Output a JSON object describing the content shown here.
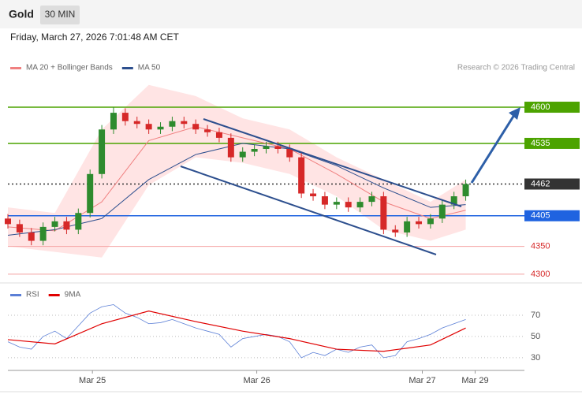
{
  "header": {
    "title": "Gold",
    "interval": "30 MIN",
    "timestamp": "Friday, March 27, 2026 7:01:48 AM CET",
    "credit": "Research © 2026 Trading Central"
  },
  "chart_data": [
    {
      "type": "candlestick",
      "legend": [
        {
          "name": "MA 20 + Bollinger Bands",
          "color": "#f08080"
        },
        {
          "name": "MA 50",
          "color": "#2d4f8e"
        }
      ],
      "x": [
        0,
        1,
        2,
        3,
        4,
        5,
        6,
        7,
        8,
        9,
        10,
        11,
        12,
        13,
        14,
        15,
        16,
        17,
        18,
        19,
        20,
        21,
        22,
        23,
        24,
        25,
        26,
        27,
        28,
        29,
        30,
        31,
        32,
        33,
        34,
        35,
        36,
        37,
        38,
        39
      ],
      "open": [
        4400,
        4390,
        4375,
        4360,
        4385,
        4395,
        4380,
        4410,
        4480,
        4560,
        4590,
        4575,
        4570,
        4560,
        4565,
        4575,
        4570,
        4560,
        4555,
        4545,
        4510,
        4520,
        4525,
        4530,
        4525,
        4510,
        4445,
        4440,
        4425,
        4430,
        4420,
        4430,
        4440,
        4380,
        4375,
        4395,
        4390,
        4400,
        4425,
        4440
      ],
      "high": [
        4408,
        4398,
        4383,
        4393,
        4403,
        4403,
        4418,
        4488,
        4568,
        4600,
        4598,
        4583,
        4578,
        4573,
        4583,
        4583,
        4578,
        4568,
        4563,
        4553,
        4528,
        4533,
        4538,
        4538,
        4533,
        4518,
        4453,
        4448,
        4438,
        4438,
        4438,
        4448,
        4448,
        4388,
        4403,
        4403,
        4408,
        4433,
        4448,
        4470
      ],
      "low": [
        4382,
        4367,
        4352,
        4352,
        4377,
        4372,
        4372,
        4402,
        4472,
        4552,
        4567,
        4562,
        4552,
        4552,
        4557,
        4562,
        4552,
        4547,
        4537,
        4502,
        4502,
        4512,
        4517,
        4517,
        4502,
        4437,
        4432,
        4417,
        4417,
        4412,
        4412,
        4422,
        4372,
        4367,
        4367,
        4382,
        4382,
        4392,
        4417,
        4432
      ],
      "close": [
        4390,
        4375,
        4360,
        4385,
        4395,
        4380,
        4410,
        4480,
        4560,
        4590,
        4575,
        4570,
        4560,
        4565,
        4575,
        4570,
        4560,
        4555,
        4545,
        4510,
        4520,
        4525,
        4530,
        4525,
        4510,
        4445,
        4440,
        4425,
        4430,
        4420,
        4430,
        4440,
        4380,
        4375,
        4395,
        4390,
        4400,
        4425,
        4440,
        4462
      ],
      "up_color": "#2e8b2e",
      "down_color": "#d62828",
      "ma_x": [
        0,
        4,
        8,
        12,
        16,
        20,
        24,
        28,
        32,
        36,
        39
      ],
      "ma20": [
        4385,
        4378,
        4430,
        4540,
        4565,
        4545,
        4525,
        4480,
        4430,
        4400,
        4415
      ],
      "ma50": [
        4370,
        4380,
        4400,
        4470,
        4515,
        4535,
        4525,
        4495,
        4455,
        4420,
        4425
      ],
      "bb_upper": [
        4420,
        4410,
        4560,
        4640,
        4620,
        4580,
        4560,
        4510,
        4470,
        4430,
        4470
      ],
      "bb_lower": [
        4350,
        4340,
        4330,
        4460,
        4510,
        4500,
        4480,
        4440,
        4380,
        4360,
        4380
      ],
      "levels": [
        {
          "value": 4600,
          "color": "#4ca300",
          "box": true
        },
        {
          "value": 4535,
          "color": "#4ca300",
          "box": true
        },
        {
          "value": 4462,
          "color": "#333333",
          "box": true
        },
        {
          "value": 4405,
          "color": "#1f63e0",
          "box": true
        },
        {
          "value": 4350,
          "color": "#f4a0a0",
          "box": false
        },
        {
          "value": 4300,
          "color": "#f4a0a0",
          "box": false
        }
      ],
      "xlim": [
        0,
        44
      ],
      "ylim": [
        4290,
        4651
      ]
    },
    {
      "type": "line",
      "series": [
        {
          "name": "RSI",
          "color": "#5b7fd6",
          "x": [
            0,
            1,
            2,
            3,
            4,
            5,
            6,
            7,
            8,
            9,
            10,
            11,
            12,
            13,
            14,
            15,
            16,
            17,
            18,
            19,
            20,
            21,
            22,
            23,
            24,
            25,
            26,
            27,
            28,
            29,
            30,
            31,
            32,
            33,
            34,
            35,
            36,
            37,
            38,
            39
          ],
          "values": [
            45,
            40,
            38,
            50,
            55,
            48,
            60,
            72,
            78,
            80,
            72,
            68,
            62,
            63,
            66,
            62,
            58,
            55,
            52,
            40,
            48,
            50,
            52,
            50,
            45,
            30,
            35,
            32,
            38,
            35,
            40,
            42,
            30,
            32,
            45,
            48,
            52,
            58,
            62,
            66
          ]
        },
        {
          "name": "9MA",
          "color": "#e00000",
          "x": [
            0,
            4,
            8,
            12,
            16,
            20,
            24,
            28,
            32,
            36,
            39
          ],
          "values": [
            47,
            43,
            62,
            74,
            64,
            55,
            48,
            38,
            36,
            42,
            58
          ]
        }
      ],
      "xlim": [
        0,
        44
      ],
      "ylim": [
        18,
        96
      ],
      "yticks": [
        70,
        50,
        30
      ],
      "xticks": [
        {
          "value": 7.2,
          "label": "Mar 25"
        },
        {
          "value": 21.2,
          "label": "Mar 26"
        },
        {
          "value": 35.3,
          "label": "Mar 27"
        },
        {
          "value": 39.8,
          "label": "Mar 29"
        }
      ]
    }
  ]
}
